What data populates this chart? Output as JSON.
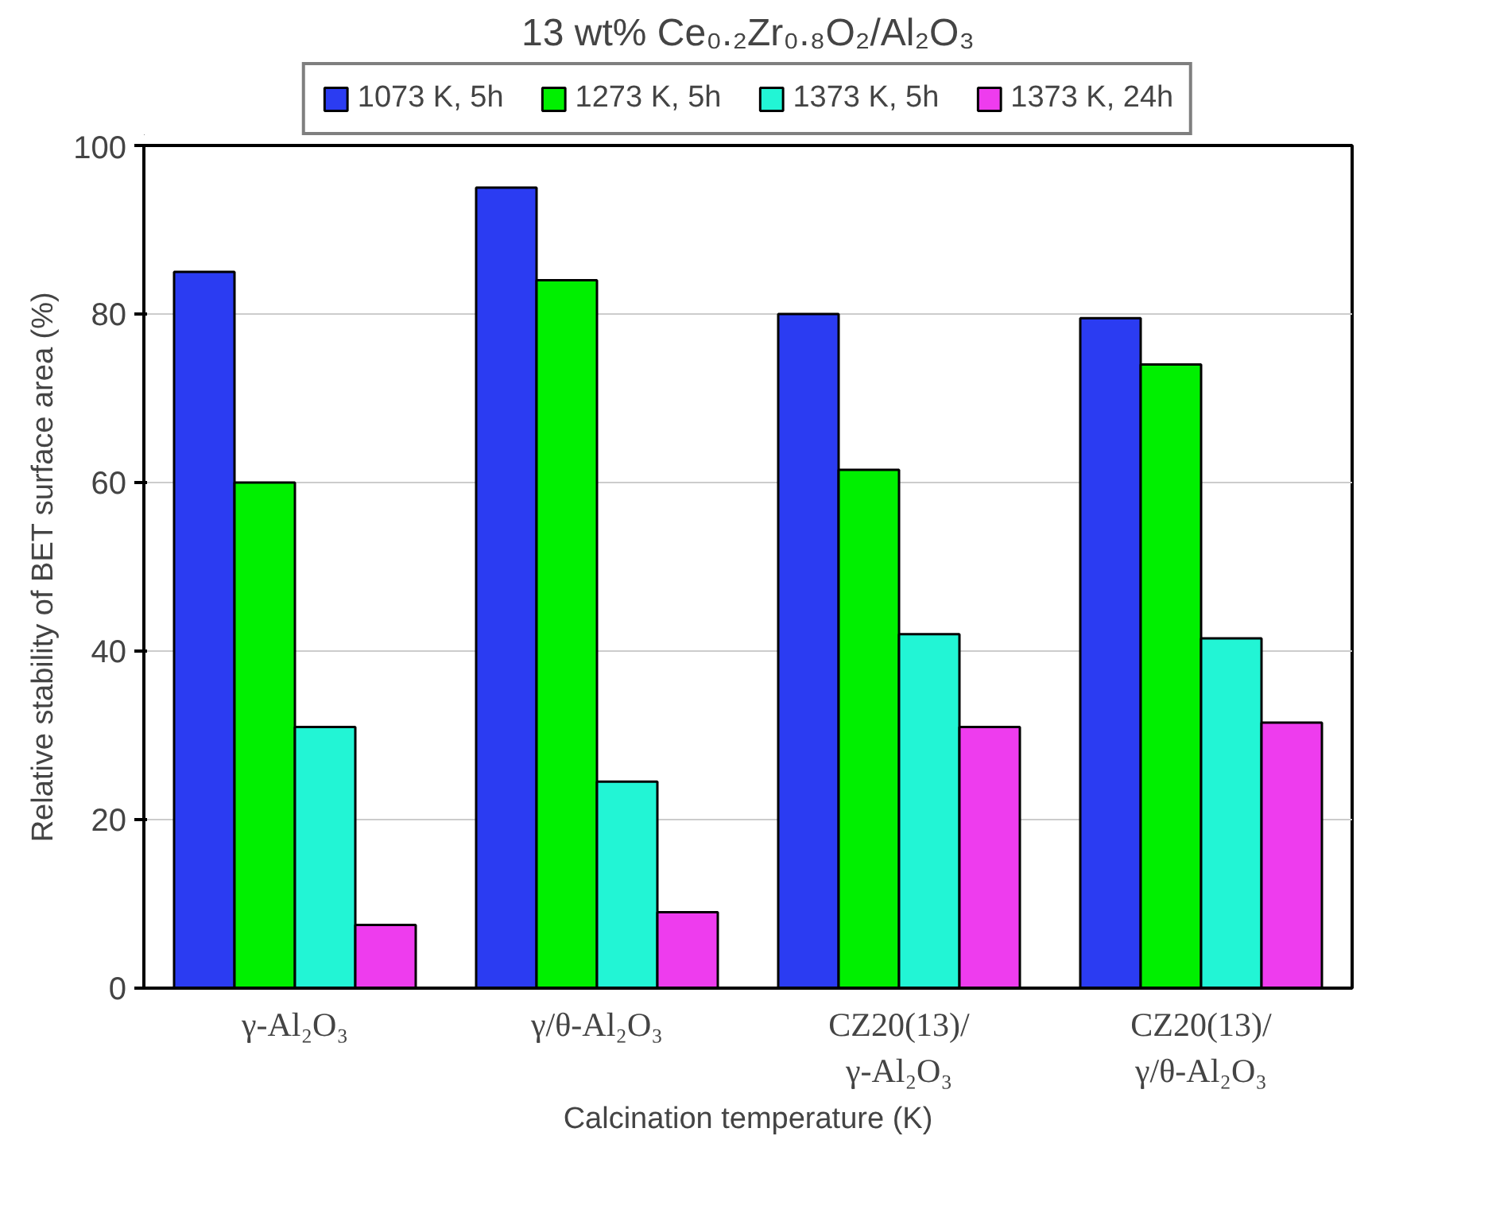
{
  "chart_data": {
    "type": "bar",
    "title": "13 wt% Ce₀.₂Zr₀.₈O₂/Al₂O₃",
    "xlabel": "Calcination temperature (K)",
    "ylabel": "Relative stability of BET surface area (%)",
    "categories": [
      "γ-Al₂O₃",
      "γ/θ-Al₂O₃",
      "CZ20(13)/\nγ-Al₂O₃",
      "CZ20(13)/\nγ/θ-Al₂O₃"
    ],
    "series": [
      {
        "name": "1073 K, 5h",
        "color": "#2b3cf2",
        "values": [
          85,
          95,
          80,
          79.5
        ]
      },
      {
        "name": "1273 K, 5h",
        "color": "#00f000",
        "values": [
          60,
          84,
          61.5,
          74
        ]
      },
      {
        "name": "1373 K, 5h",
        "color": "#22f5d5",
        "values": [
          31,
          24.5,
          42,
          41.5
        ]
      },
      {
        "name": "1373 K, 24h",
        "color": "#ee3cee",
        "values": [
          7.5,
          9,
          31,
          31.5
        ]
      }
    ],
    "ylim": [
      0,
      100
    ],
    "yticks": [
      0,
      20,
      40,
      60,
      80,
      100
    ],
    "grid": "y",
    "legend": "top"
  }
}
